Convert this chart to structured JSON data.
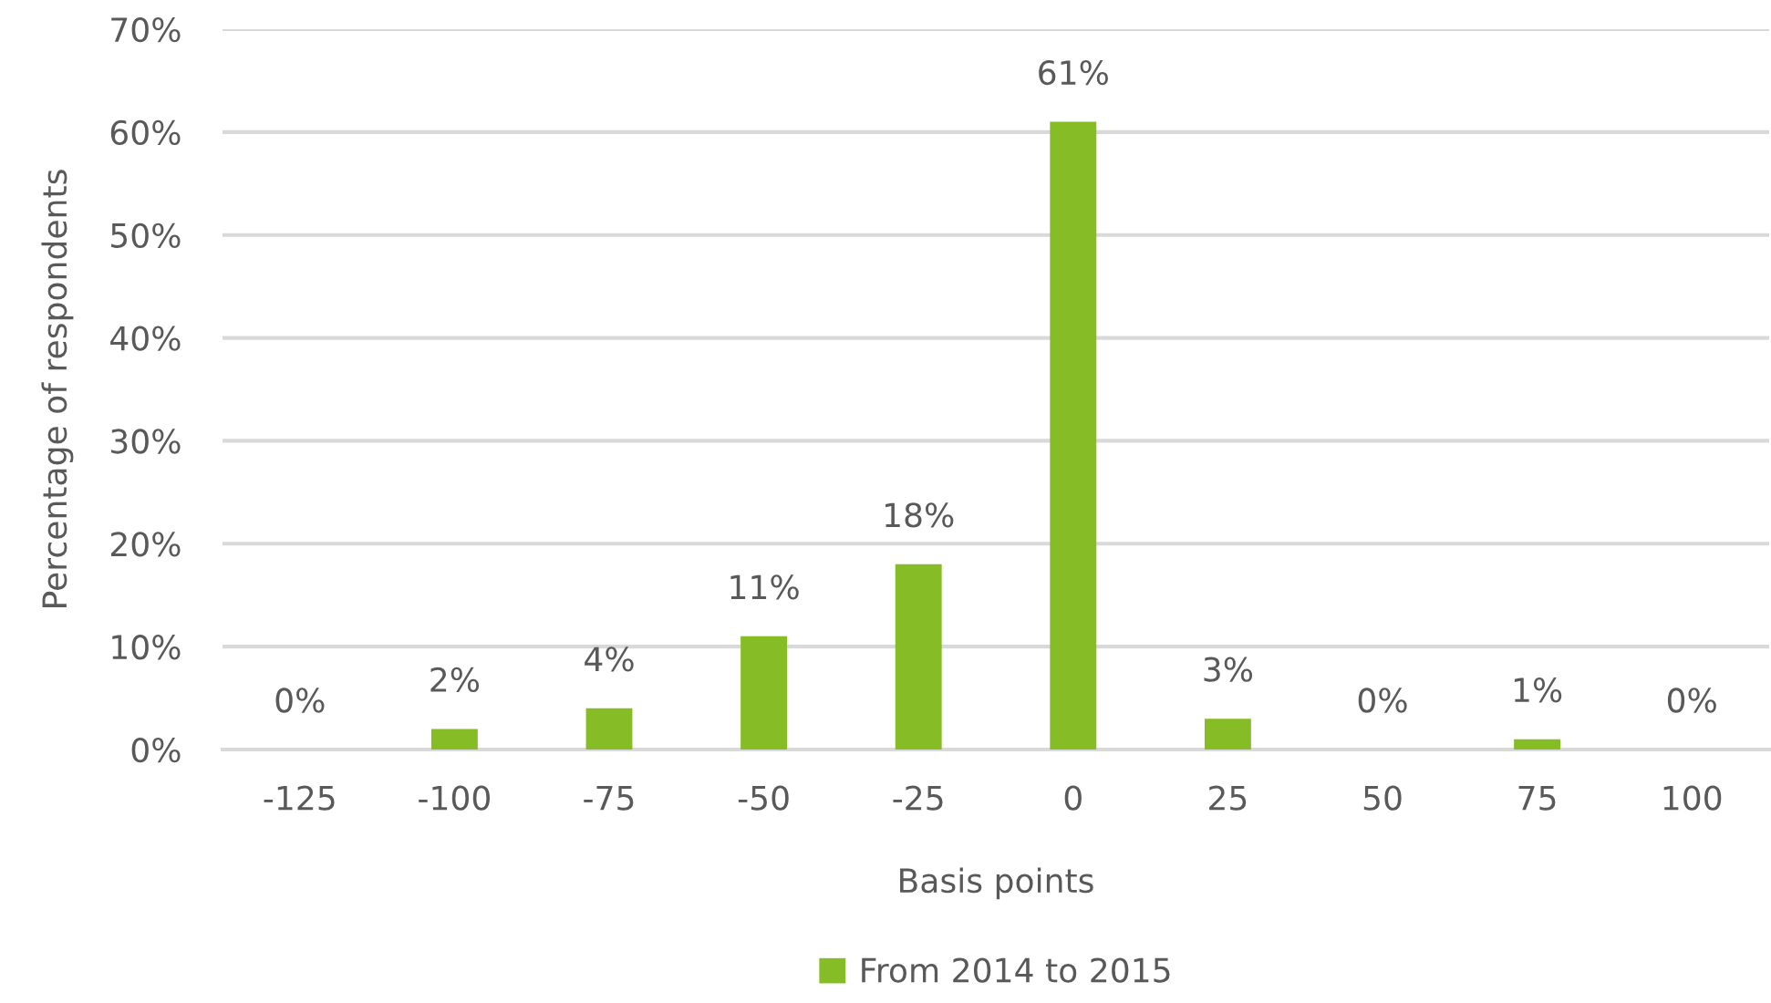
{
  "chart_data": {
    "type": "bar",
    "xlabel": "Basis points",
    "ylabel": "Percentage of respondents",
    "categories": [
      "-125",
      "-100",
      "-75",
      "-50",
      "-25",
      "0",
      "25",
      "50",
      "75",
      "100"
    ],
    "series": [
      {
        "name": "From 2014 to 2015",
        "color": "#86bc25",
        "values": [
          0,
          2,
          4,
          11,
          18,
          61,
          3,
          0,
          1,
          0
        ],
        "value_labels": [
          "0%",
          "2%",
          "4%",
          "11%",
          "18%",
          "61%",
          "3%",
          "0%",
          "1%",
          "0%"
        ]
      }
    ],
    "ylim": [
      0,
      70
    ],
    "yticks": [
      {
        "value": 0,
        "label": "0%"
      },
      {
        "value": 10,
        "label": "10%"
      },
      {
        "value": 20,
        "label": "20%"
      },
      {
        "value": 30,
        "label": "30%"
      },
      {
        "value": 40,
        "label": "40%"
      },
      {
        "value": 50,
        "label": "50%"
      },
      {
        "value": 60,
        "label": "60%"
      },
      {
        "value": 70,
        "label": "70%"
      }
    ],
    "grid": "y",
    "legend": "bottom"
  }
}
